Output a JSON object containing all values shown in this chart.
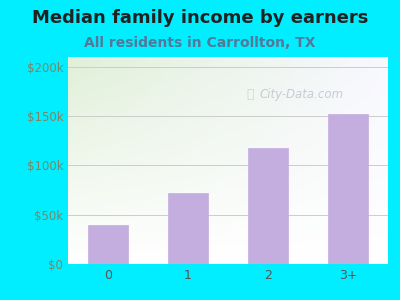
{
  "title": "Median family income by earners",
  "subtitle": "All residents in Carrollton, TX",
  "categories": [
    "0",
    "1",
    "2",
    "3+"
  ],
  "values": [
    40000,
    72000,
    118000,
    152000
  ],
  "bar_color": "#c4aee0",
  "bar_edge_color": "#c4aee0",
  "ylim": [
    0,
    210000
  ],
  "yticks": [
    0,
    50000,
    100000,
    150000,
    200000
  ],
  "ytick_labels": [
    "$0",
    "$50k",
    "$100k",
    "$150k",
    "$200k"
  ],
  "title_fontsize": 13,
  "subtitle_fontsize": 10,
  "title_color": "#222222",
  "subtitle_color": "#557799",
  "tick_label_color": "#778866",
  "bg_outer": "#00eeff",
  "watermark": "City-Data.com",
  "grid_color": "#cccccc",
  "xtick_color": "#555555"
}
